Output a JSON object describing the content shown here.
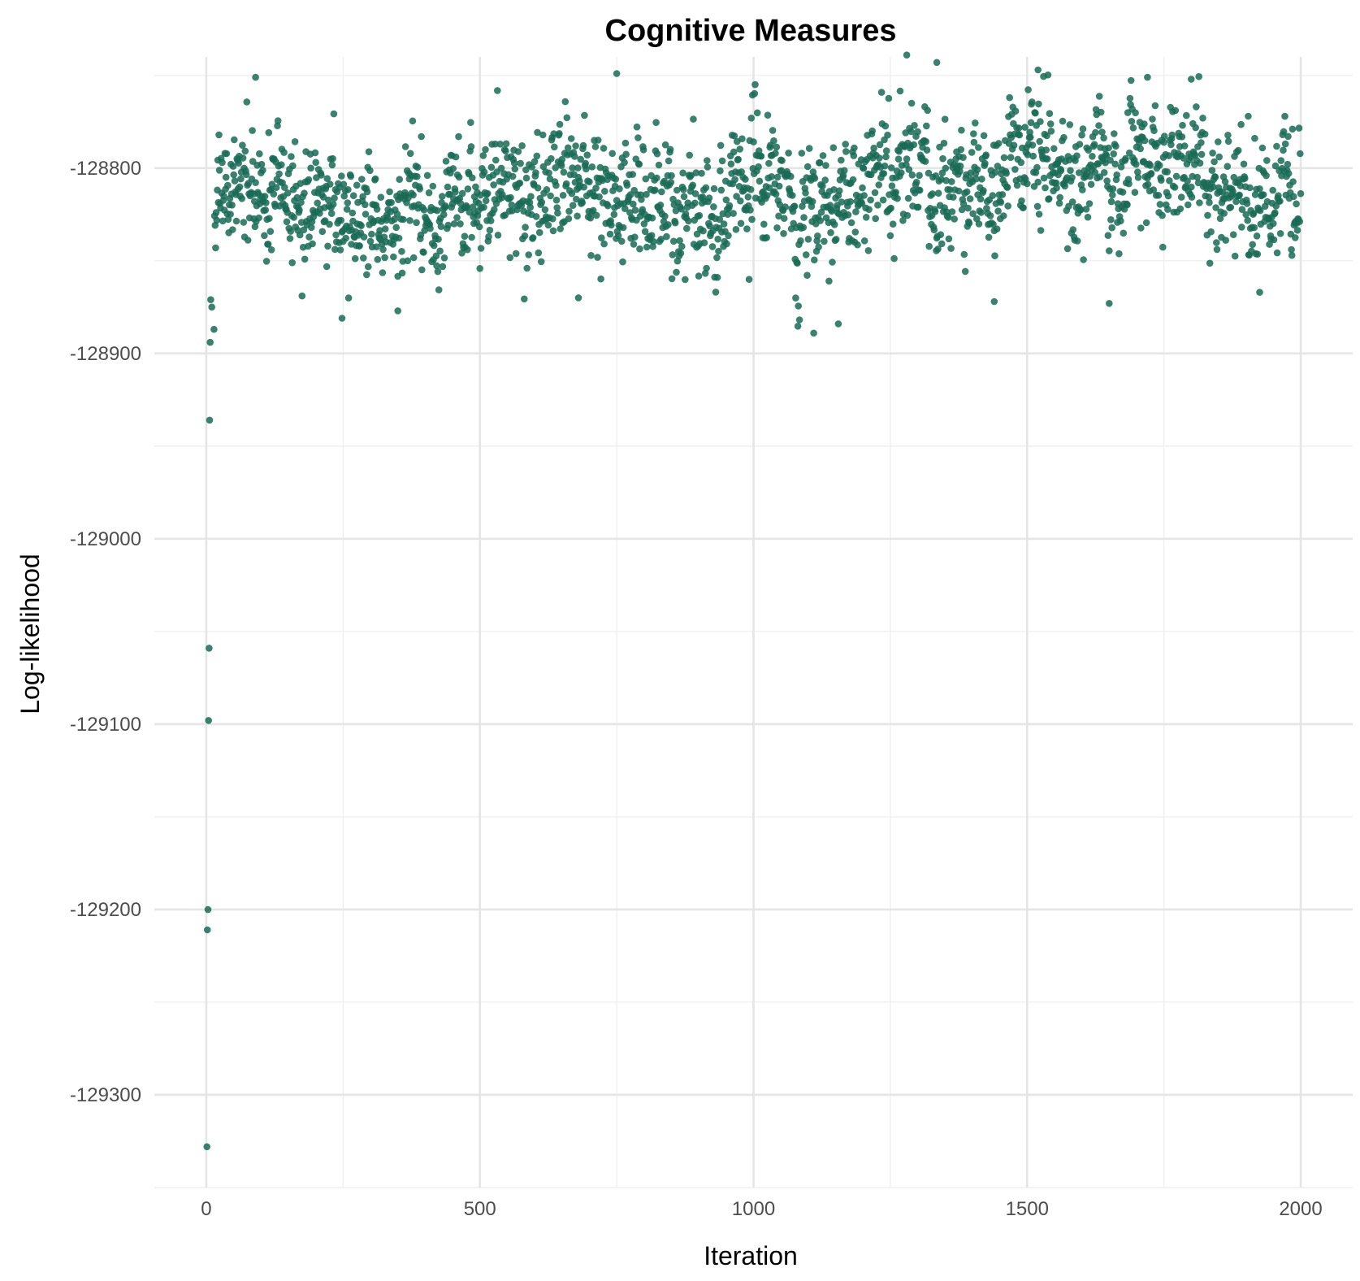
{
  "chart_data": {
    "type": "scatter",
    "title": "Cognitive Measures",
    "xlabel": "Iteration",
    "ylabel": "Log-likelihood",
    "xlim": [
      -95,
      2095
    ],
    "ylim": [
      -129350,
      -128740
    ],
    "x_ticks": [
      0,
      500,
      1000,
      1500,
      2000
    ],
    "y_ticks": [
      -128800,
      -128900,
      -129000,
      -129100,
      -129200,
      -129300
    ],
    "grid": true,
    "legend": "none",
    "point_color": "#1a6b56",
    "initial_points": [
      {
        "x": 1,
        "y": -129328
      },
      {
        "x": 2,
        "y": -129211
      },
      {
        "x": 3,
        "y": -129200
      },
      {
        "x": 4,
        "y": -129098
      },
      {
        "x": 5,
        "y": -129059
      },
      {
        "x": 6,
        "y": -128936
      },
      {
        "x": 7,
        "y": -128894
      },
      {
        "x": 8,
        "y": -128871
      },
      {
        "x": 10,
        "y": -128875
      },
      {
        "x": 14,
        "y": -128887
      }
    ],
    "stationary_phase": {
      "iterations": [
        15,
        2000
      ],
      "approx_count": 1985,
      "segment_means": [
        {
          "x": 15,
          "y": -128815
        },
        {
          "x": 250,
          "y": -128815
        },
        {
          "x": 300,
          "y": -128825
        },
        {
          "x": 400,
          "y": -128820
        },
        {
          "x": 500,
          "y": -128810
        },
        {
          "x": 600,
          "y": -128815
        },
        {
          "x": 700,
          "y": -128805
        },
        {
          "x": 800,
          "y": -128815
        },
        {
          "x": 900,
          "y": -128825
        },
        {
          "x": 1000,
          "y": -128810
        },
        {
          "x": 1050,
          "y": -128822
        },
        {
          "x": 1100,
          "y": -128825
        },
        {
          "x": 1200,
          "y": -128805
        },
        {
          "x": 1300,
          "y": -128795
        },
        {
          "x": 1400,
          "y": -128812
        },
        {
          "x": 1500,
          "y": -128802
        },
        {
          "x": 1600,
          "y": -128800
        },
        {
          "x": 1700,
          "y": -128800
        },
        {
          "x": 1800,
          "y": -128795
        },
        {
          "x": 1900,
          "y": -128810
        },
        {
          "x": 2000,
          "y": -128815
        }
      ],
      "spread_sd": 18,
      "max": -128739,
      "min": -128889
    },
    "notable_points": [
      {
        "x": 90,
        "y": -128751
      },
      {
        "x": 248,
        "y": -128881
      },
      {
        "x": 350,
        "y": -128877
      },
      {
        "x": 680,
        "y": -128870
      },
      {
        "x": 750,
        "y": -128749
      },
      {
        "x": 1110,
        "y": -128889
      },
      {
        "x": 1155,
        "y": -128884
      },
      {
        "x": 1280,
        "y": -128739
      },
      {
        "x": 1335,
        "y": -128743
      },
      {
        "x": 1440,
        "y": -128872
      },
      {
        "x": 1520,
        "y": -128747
      },
      {
        "x": 1650,
        "y": -128873
      },
      {
        "x": 1720,
        "y": -128751
      },
      {
        "x": 1800,
        "y": -128752
      },
      {
        "x": 1925,
        "y": -128867
      }
    ]
  }
}
